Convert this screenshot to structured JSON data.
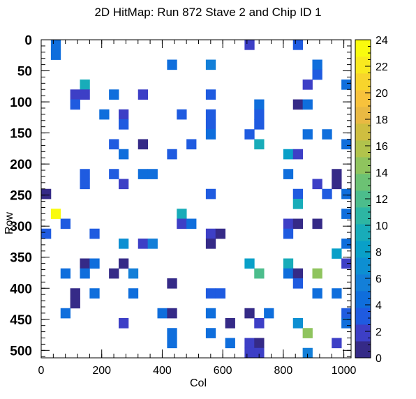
{
  "chart_data": {
    "type": "heatmap",
    "title": "2D HitMap: Run 872 Stave 2 and Chip ID 1",
    "xlabel": "Col",
    "ylabel": "Row",
    "xlim": [
      0,
      1024
    ],
    "ylim": [
      0,
      512
    ],
    "y_inverted": true,
    "bin_size": [
      32,
      16
    ],
    "x_ticks": [
      0,
      200,
      400,
      600,
      800,
      1000
    ],
    "y_ticks": [
      0,
      50,
      100,
      150,
      200,
      250,
      300,
      350,
      400,
      450,
      500
    ],
    "colorbar": {
      "range": [
        0,
        24
      ],
      "ticks": [
        0,
        2,
        4,
        6,
        8,
        10,
        12,
        14,
        16,
        18,
        20,
        22,
        24
      ],
      "palette": [
        "#352a87",
        "#3d3fc6",
        "#1f5be0",
        "#0f6edc",
        "#137fd8",
        "#0d8fd2",
        "#09a0c8",
        "#18acb9",
        "#2db6a3",
        "#4cbd8c",
        "#6cc274",
        "#8fc45e",
        "#b1c34c",
        "#cfbe40",
        "#e9b943",
        "#f7c23c",
        "#f8d52c",
        "#f9e91f",
        "#f9fb0e"
      ]
    },
    "cells": [
      {
        "x": 48,
        "y": 8,
        "v": 5
      },
      {
        "x": 688,
        "y": 8,
        "v": 2
      },
      {
        "x": 848,
        "y": 8,
        "v": 3
      },
      {
        "x": 48,
        "y": 24,
        "v": 5
      },
      {
        "x": 432,
        "y": 40,
        "v": 5
      },
      {
        "x": 560,
        "y": 40,
        "v": 6
      },
      {
        "x": 912,
        "y": 40,
        "v": 5
      },
      {
        "x": 912,
        "y": 56,
        "v": 3
      },
      {
        "x": 144,
        "y": 72,
        "v": 9
      },
      {
        "x": 880,
        "y": 72,
        "v": 2
      },
      {
        "x": 1008,
        "y": 72,
        "v": 4
      },
      {
        "x": 112,
        "y": 88,
        "v": 2
      },
      {
        "x": 144,
        "y": 88,
        "v": 2
      },
      {
        "x": 240,
        "y": 88,
        "v": 4
      },
      {
        "x": 336,
        "y": 88,
        "v": 2
      },
      {
        "x": 560,
        "y": 88,
        "v": 3
      },
      {
        "x": 112,
        "y": 104,
        "v": 3
      },
      {
        "x": 720,
        "y": 104,
        "v": 4
      },
      {
        "x": 848,
        "y": 104,
        "v": 1
      },
      {
        "x": 880,
        "y": 104,
        "v": 5
      },
      {
        "x": 208,
        "y": 120,
        "v": 5
      },
      {
        "x": 272,
        "y": 120,
        "v": 2
      },
      {
        "x": 464,
        "y": 120,
        "v": 3
      },
      {
        "x": 560,
        "y": 120,
        "v": 3
      },
      {
        "x": 720,
        "y": 120,
        "v": 3
      },
      {
        "x": 272,
        "y": 136,
        "v": 3
      },
      {
        "x": 560,
        "y": 136,
        "v": 3
      },
      {
        "x": 720,
        "y": 136,
        "v": 3
      },
      {
        "x": 560,
        "y": 152,
        "v": 4
      },
      {
        "x": 688,
        "y": 152,
        "v": 3
      },
      {
        "x": 880,
        "y": 152,
        "v": 5
      },
      {
        "x": 944,
        "y": 152,
        "v": 4
      },
      {
        "x": 240,
        "y": 168,
        "v": 3
      },
      {
        "x": 336,
        "y": 168,
        "v": 1
      },
      {
        "x": 496,
        "y": 168,
        "v": 3
      },
      {
        "x": 720,
        "y": 168,
        "v": 10
      },
      {
        "x": 1008,
        "y": 168,
        "v": 5
      },
      {
        "x": 272,
        "y": 184,
        "v": 4
      },
      {
        "x": 432,
        "y": 184,
        "v": 3
      },
      {
        "x": 816,
        "y": 184,
        "v": 8
      },
      {
        "x": 848,
        "y": 184,
        "v": 2
      },
      {
        "x": 144,
        "y": 216,
        "v": 3
      },
      {
        "x": 240,
        "y": 216,
        "v": 3
      },
      {
        "x": 336,
        "y": 216,
        "v": 5
      },
      {
        "x": 368,
        "y": 216,
        "v": 4
      },
      {
        "x": 816,
        "y": 216,
        "v": 4
      },
      {
        "x": 976,
        "y": 216,
        "v": 1
      },
      {
        "x": 144,
        "y": 232,
        "v": 3
      },
      {
        "x": 272,
        "y": 232,
        "v": 2
      },
      {
        "x": 912,
        "y": 232,
        "v": 2
      },
      {
        "x": 976,
        "y": 232,
        "v": 1
      },
      {
        "x": 16,
        "y": 248,
        "v": 1
      },
      {
        "x": 560,
        "y": 248,
        "v": 3
      },
      {
        "x": 848,
        "y": 248,
        "v": 3
      },
      {
        "x": 944,
        "y": 248,
        "v": 3
      },
      {
        "x": 1008,
        "y": 248,
        "v": 4
      },
      {
        "x": 848,
        "y": 264,
        "v": 9
      },
      {
        "x": 48,
        "y": 280,
        "v": 23
      },
      {
        "x": 464,
        "y": 280,
        "v": 9
      },
      {
        "x": 1008,
        "y": 280,
        "v": 4
      },
      {
        "x": 80,
        "y": 296,
        "v": 3
      },
      {
        "x": 464,
        "y": 296,
        "v": 2
      },
      {
        "x": 496,
        "y": 296,
        "v": 5
      },
      {
        "x": 816,
        "y": 296,
        "v": 2
      },
      {
        "x": 848,
        "y": 296,
        "v": 1
      },
      {
        "x": 912,
        "y": 296,
        "v": 1
      },
      {
        "x": 16,
        "y": 312,
        "v": 3
      },
      {
        "x": 176,
        "y": 312,
        "v": 3
      },
      {
        "x": 560,
        "y": 312,
        "v": 2
      },
      {
        "x": 592,
        "y": 312,
        "v": 1
      },
      {
        "x": 816,
        "y": 312,
        "v": 3
      },
      {
        "x": 272,
        "y": 328,
        "v": 7
      },
      {
        "x": 336,
        "y": 328,
        "v": 2
      },
      {
        "x": 368,
        "y": 328,
        "v": 6
      },
      {
        "x": 560,
        "y": 328,
        "v": 1
      },
      {
        "x": 1008,
        "y": 328,
        "v": 4
      },
      {
        "x": 976,
        "y": 344,
        "v": 8
      },
      {
        "x": 144,
        "y": 360,
        "v": 1
      },
      {
        "x": 176,
        "y": 360,
        "v": 4
      },
      {
        "x": 272,
        "y": 360,
        "v": 1
      },
      {
        "x": 688,
        "y": 360,
        "v": 8
      },
      {
        "x": 816,
        "y": 360,
        "v": 10
      },
      {
        "x": 1008,
        "y": 360,
        "v": 2
      },
      {
        "x": 80,
        "y": 376,
        "v": 4
      },
      {
        "x": 144,
        "y": 376,
        "v": 4
      },
      {
        "x": 240,
        "y": 376,
        "v": 1
      },
      {
        "x": 304,
        "y": 376,
        "v": 6
      },
      {
        "x": 720,
        "y": 376,
        "v": 12
      },
      {
        "x": 816,
        "y": 376,
        "v": 5
      },
      {
        "x": 848,
        "y": 376,
        "v": 1
      },
      {
        "x": 912,
        "y": 376,
        "v": 14
      },
      {
        "x": 432,
        "y": 392,
        "v": 1
      },
      {
        "x": 848,
        "y": 392,
        "v": 3
      },
      {
        "x": 112,
        "y": 408,
        "v": 1
      },
      {
        "x": 176,
        "y": 408,
        "v": 5
      },
      {
        "x": 304,
        "y": 408,
        "v": 5
      },
      {
        "x": 560,
        "y": 408,
        "v": 3
      },
      {
        "x": 592,
        "y": 408,
        "v": 3
      },
      {
        "x": 912,
        "y": 408,
        "v": 4
      },
      {
        "x": 976,
        "y": 408,
        "v": 4
      },
      {
        "x": 112,
        "y": 424,
        "v": 1
      },
      {
        "x": 80,
        "y": 440,
        "v": 5
      },
      {
        "x": 400,
        "y": 440,
        "v": 4
      },
      {
        "x": 432,
        "y": 440,
        "v": 1
      },
      {
        "x": 560,
        "y": 440,
        "v": 5
      },
      {
        "x": 688,
        "y": 440,
        "v": 1
      },
      {
        "x": 752,
        "y": 440,
        "v": 4
      },
      {
        "x": 1008,
        "y": 440,
        "v": 3
      },
      {
        "x": 272,
        "y": 456,
        "v": 2
      },
      {
        "x": 624,
        "y": 456,
        "v": 1
      },
      {
        "x": 720,
        "y": 456,
        "v": 2
      },
      {
        "x": 848,
        "y": 456,
        "v": 7
      },
      {
        "x": 1008,
        "y": 456,
        "v": 4
      },
      {
        "x": 432,
        "y": 472,
        "v": 4
      },
      {
        "x": 560,
        "y": 472,
        "v": 4
      },
      {
        "x": 880,
        "y": 472,
        "v": 14
      },
      {
        "x": 432,
        "y": 488,
        "v": 4
      },
      {
        "x": 624,
        "y": 488,
        "v": 5
      },
      {
        "x": 688,
        "y": 488,
        "v": 2
      },
      {
        "x": 720,
        "y": 488,
        "v": 1
      },
      {
        "x": 976,
        "y": 488,
        "v": 2
      },
      {
        "x": 688,
        "y": 504,
        "v": 2
      },
      {
        "x": 720,
        "y": 504,
        "v": 2
      },
      {
        "x": 880,
        "y": 504,
        "v": 6
      }
    ]
  }
}
